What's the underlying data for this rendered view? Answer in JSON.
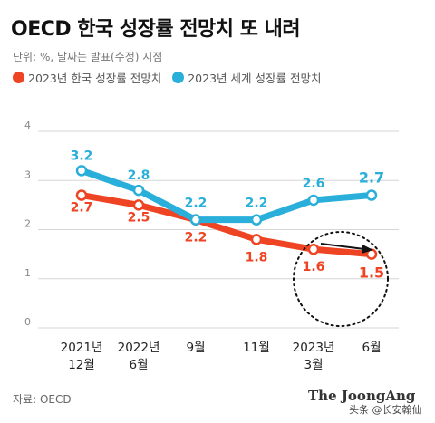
{
  "title": "OECD 한국 성장률 전망치 또 내려",
  "subtitle": "단위: %, 날짜는 발표(수정) 시점",
  "source": "자료: OECD",
  "logo": "The JoongAng",
  "watermark": "头条 @长安翰仙",
  "colors": {
    "korea": "#ef4423",
    "world": "#29afd9",
    "grid": "#d6d6d6",
    "axis_text": "#888888"
  },
  "chart_data": {
    "type": "line",
    "categories": [
      "2021년\n12월",
      "2022년\n6월",
      "9월",
      "11월",
      "2023년\n3월",
      "6월"
    ],
    "ylim": [
      0,
      4
    ],
    "yticks": [
      0,
      1,
      2,
      3,
      4
    ],
    "grid": true,
    "legend_position": "top-left",
    "series": [
      {
        "name": "2023년 한국 성장률 전망치",
        "color": "#ef4423",
        "values": [
          2.7,
          2.5,
          2.2,
          1.8,
          1.6,
          1.5
        ]
      },
      {
        "name": "2023년 세계 성장률 전망치",
        "color": "#29afd9",
        "values": [
          3.2,
          2.8,
          2.2,
          2.2,
          2.6,
          2.7
        ]
      }
    ],
    "annotation": "dashed circle with arrow around last two Korea points"
  }
}
